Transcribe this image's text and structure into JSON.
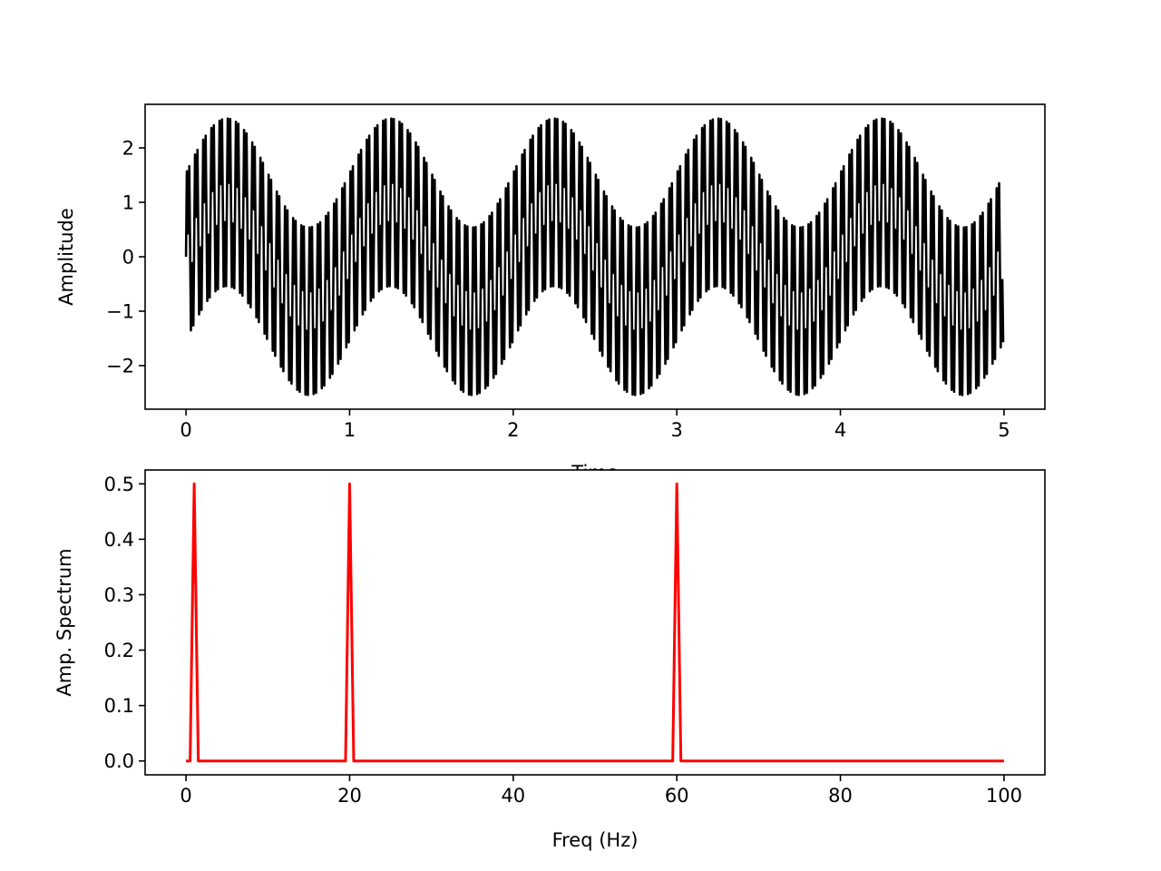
{
  "chart_data": [
    {
      "type": "line",
      "xlabel": "Time",
      "ylabel": "Amplitude",
      "xlim": [
        -0.25,
        5.25
      ],
      "ylim": [
        -2.8,
        2.8
      ],
      "xticks": [
        0,
        1,
        2,
        3,
        4,
        5
      ],
      "xtick_labels": [
        "0",
        "1",
        "2",
        "3",
        "4",
        "5"
      ],
      "yticks": [
        -2,
        -1,
        0,
        1,
        2
      ],
      "ytick_labels": [
        "−2",
        "−1",
        "0",
        "1",
        "2"
      ],
      "grid": false,
      "series": [
        {
          "color": "#000000",
          "components": [
            {
              "frequency_hz": 1,
              "amplitude": 1.0
            },
            {
              "frequency_hz": 20,
              "amplitude": 1.0
            },
            {
              "frequency_hz": 60,
              "amplitude": 1.0
            }
          ],
          "sample_rate_hz": 200,
          "x_range": [
            0,
            4.995
          ]
        }
      ]
    },
    {
      "type": "line",
      "xlabel": "Freq (Hz)",
      "ylabel": "Amp. Spectrum",
      "xlim": [
        -5,
        105
      ],
      "ylim": [
        -0.025,
        0.525
      ],
      "xticks": [
        0,
        20,
        40,
        60,
        80,
        100
      ],
      "xtick_labels": [
        "0",
        "20",
        "40",
        "60",
        "80",
        "100"
      ],
      "yticks": [
        0.0,
        0.1,
        0.2,
        0.3,
        0.4,
        0.5
      ],
      "ytick_labels": [
        "0.0",
        "0.1",
        "0.2",
        "0.3",
        "0.4",
        "0.5"
      ],
      "grid": false,
      "series": [
        {
          "color": "#ff0000",
          "x_range": [
            0,
            100
          ],
          "baseline": 0.0,
          "peaks": [
            {
              "x": 1,
              "y": 0.5
            },
            {
              "x": 20,
              "y": 0.5
            },
            {
              "x": 60,
              "y": 0.5
            }
          ]
        }
      ]
    }
  ]
}
